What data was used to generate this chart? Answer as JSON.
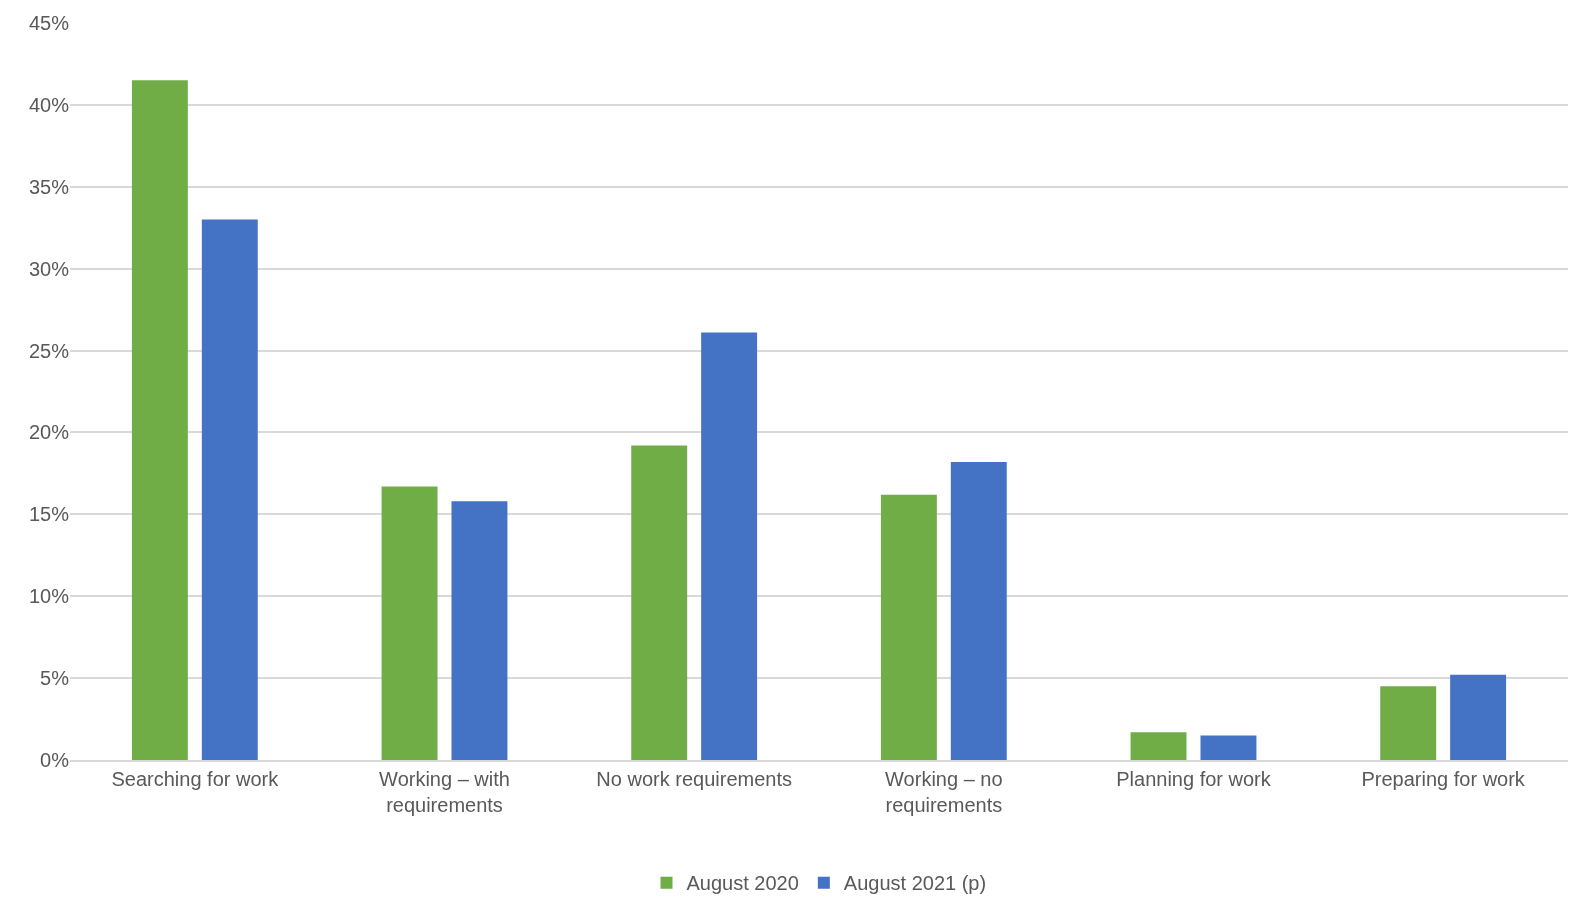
{
  "chart_data": {
    "type": "bar",
    "categories": [
      "Searching for work",
      "Working – with requirements",
      "No work requirements",
      "Working – no requirements",
      "Planning for work",
      "Preparing for work"
    ],
    "series": [
      {
        "name": "August 2020",
        "color": "#70ad47",
        "values": [
          41.5,
          16.7,
          19.2,
          16.2,
          1.7,
          4.5
        ]
      },
      {
        "name": "August 2021 (p)",
        "color": "#4472c4",
        "values": [
          33.0,
          15.8,
          26.1,
          18.2,
          1.5,
          5.2
        ]
      }
    ],
    "ylim": [
      0,
      45
    ],
    "yticks": [
      {
        "value": 0,
        "label": "0%"
      },
      {
        "value": 5,
        "label": "5%"
      },
      {
        "value": 10,
        "label": "10%"
      },
      {
        "value": 15,
        "label": "15%"
      },
      {
        "value": 20,
        "label": "20%"
      },
      {
        "value": 25,
        "label": "25%"
      },
      {
        "value": 30,
        "label": "30%"
      },
      {
        "value": 35,
        "label": "35%"
      },
      {
        "value": 40,
        "label": "40%"
      },
      {
        "value": 45,
        "label": "45%"
      }
    ],
    "grid": "y",
    "legend": "bottom"
  }
}
